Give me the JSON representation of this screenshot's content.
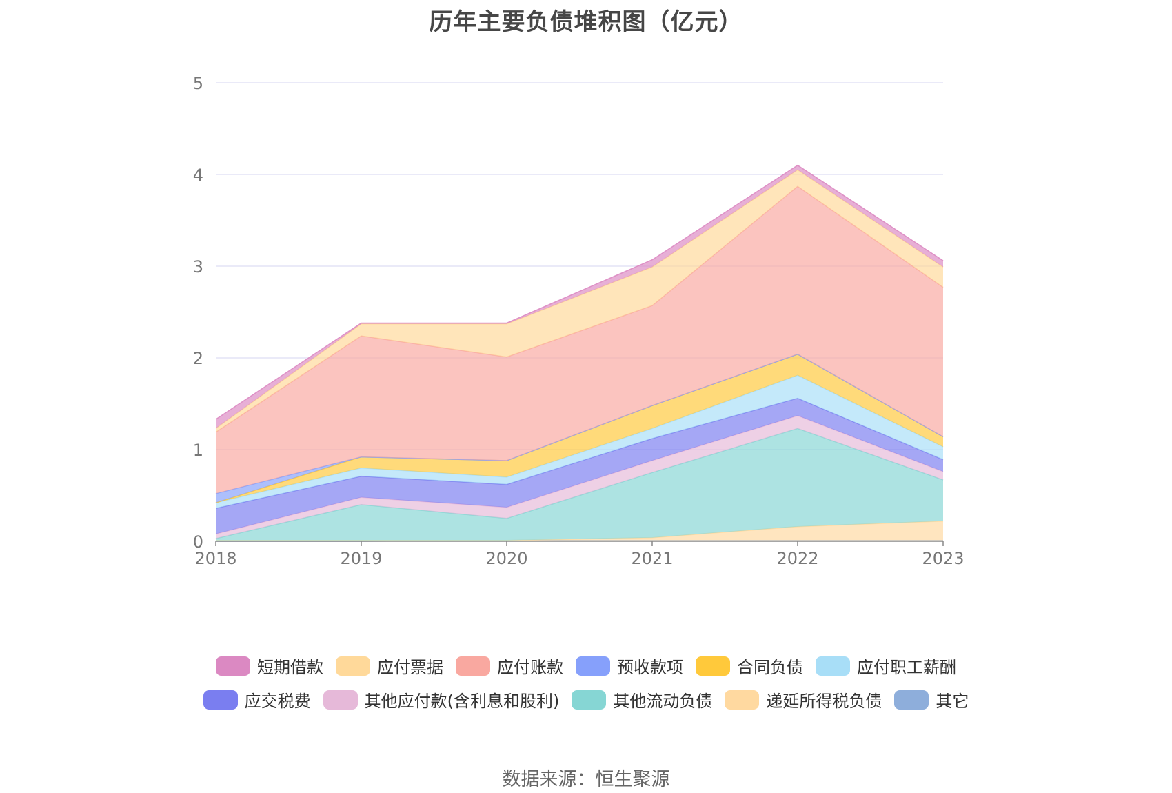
{
  "title": "历年主要负债堆积图（亿元）",
  "source": "数据来源：恒生聚源",
  "chart_data": {
    "type": "area",
    "stacked": true,
    "categories": [
      "2018",
      "2019",
      "2020",
      "2021",
      "2022",
      "2023"
    ],
    "ylim": [
      0,
      5
    ],
    "yticks": [
      0,
      1,
      2,
      3,
      4,
      5
    ],
    "grid": true,
    "legend_position": "bottom",
    "series": [
      {
        "name": "其它",
        "color": "#8eaedb",
        "values": [
          0.0,
          0.0,
          0.01,
          0.01,
          0.01,
          0.01
        ]
      },
      {
        "name": "递延所得税负债",
        "color": "#ffd9a0",
        "values": [
          0.01,
          0.01,
          0.0,
          0.03,
          0.15,
          0.21
        ]
      },
      {
        "name": "其他流动负债",
        "color": "#86d6d4",
        "values": [
          0.02,
          0.39,
          0.24,
          0.71,
          1.07,
          0.45
        ]
      },
      {
        "name": "其他应付款(含利息和股利)",
        "color": "#e6b9d9",
        "values": [
          0.05,
          0.08,
          0.12,
          0.13,
          0.14,
          0.09
        ]
      },
      {
        "name": "应交税费",
        "color": "#7a7ef0",
        "values": [
          0.28,
          0.23,
          0.25,
          0.24,
          0.19,
          0.13
        ]
      },
      {
        "name": "应付职工薪酬",
        "color": "#a8def7",
        "values": [
          0.06,
          0.09,
          0.08,
          0.11,
          0.25,
          0.14
        ]
      },
      {
        "name": "合同负债",
        "color": "#ffc93b",
        "values": [
          0.0,
          0.12,
          0.18,
          0.25,
          0.23,
          0.11
        ]
      },
      {
        "name": "预收款项",
        "color": "#86a0fb",
        "values": [
          0.1,
          0.0,
          0.0,
          0.0,
          0.0,
          0.0
        ]
      },
      {
        "name": "应付账款",
        "color": "#f9a8a0",
        "values": [
          0.67,
          1.32,
          1.13,
          1.09,
          1.83,
          1.63
        ]
      },
      {
        "name": "应付票据",
        "color": "#ffd99a",
        "values": [
          0.04,
          0.13,
          0.36,
          0.42,
          0.18,
          0.22
        ]
      },
      {
        "name": "短期借款",
        "color": "#db89c2",
        "values": [
          0.1,
          0.01,
          0.01,
          0.08,
          0.05,
          0.07
        ]
      }
    ]
  },
  "legend": {
    "rows": [
      [
        {
          "label": "短期借款",
          "color": "#db89c2"
        },
        {
          "label": "应付票据",
          "color": "#ffd99a"
        },
        {
          "label": "应付账款",
          "color": "#f9a8a0"
        },
        {
          "label": "预收款项",
          "color": "#86a0fb"
        },
        {
          "label": "合同负债",
          "color": "#ffc93b"
        },
        {
          "label": "应付职工薪酬",
          "color": "#a8def7"
        }
      ],
      [
        {
          "label": "应交税费",
          "color": "#7a7ef0"
        },
        {
          "label": "其他应付款(含利息和股利)",
          "color": "#e6b9d9"
        },
        {
          "label": "其他流动负债",
          "color": "#86d6d4"
        },
        {
          "label": "递延所得税负债",
          "color": "#ffd9a0"
        },
        {
          "label": "其它",
          "color": "#8eaedb"
        }
      ]
    ]
  }
}
